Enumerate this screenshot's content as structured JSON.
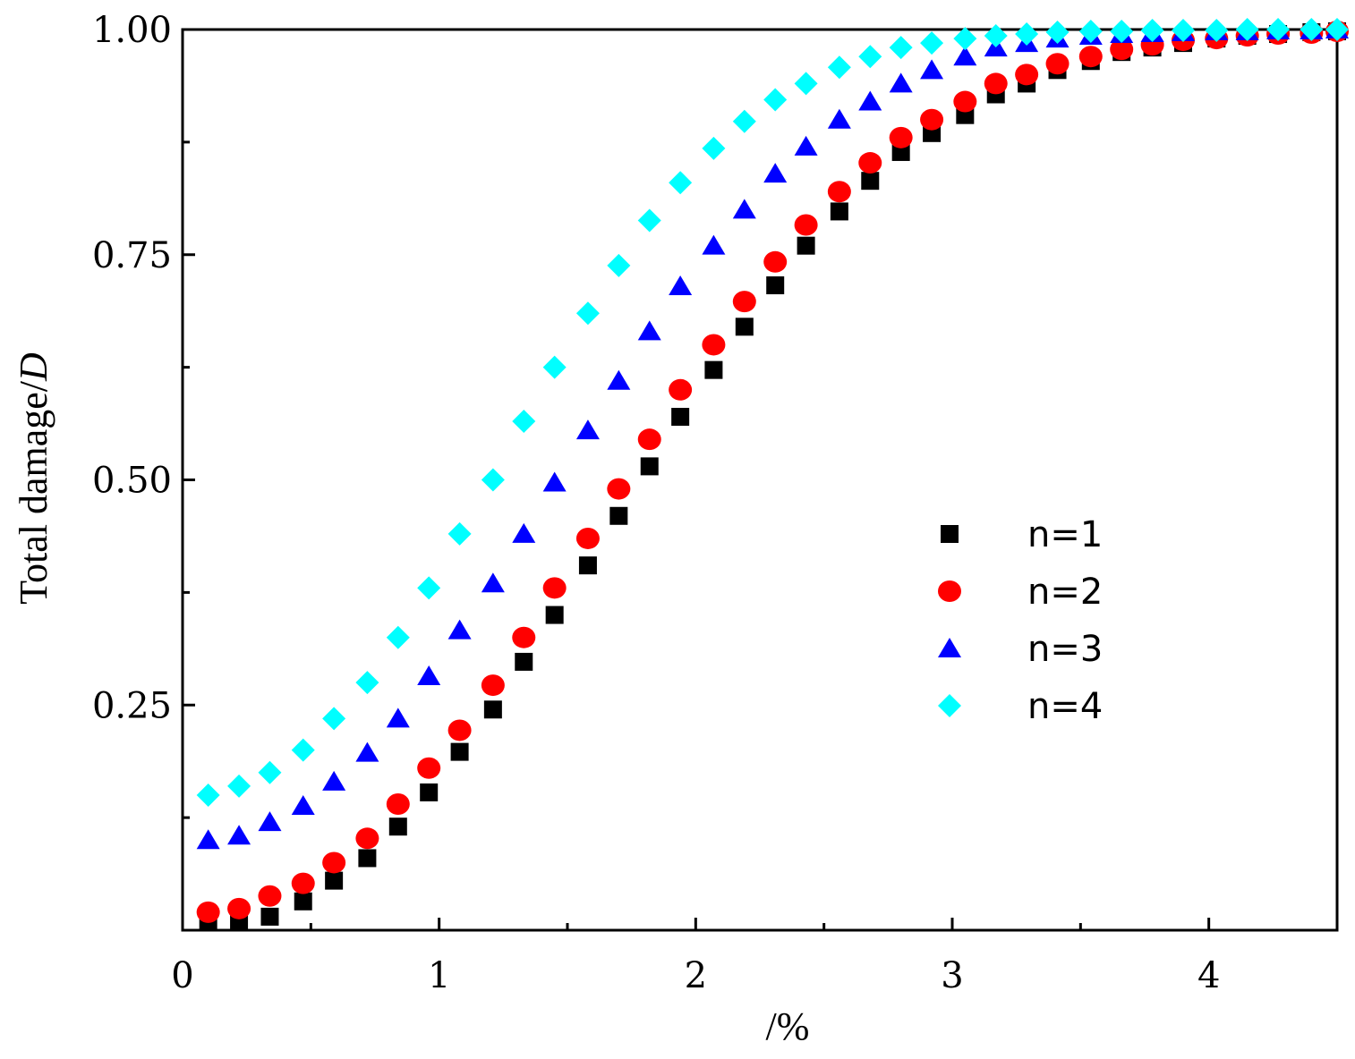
{
  "chart_data": {
    "type": "scatter",
    "title": "",
    "xlabel": "/%",
    "ylabel_text": "Total damage/",
    "ylabel_var": "D",
    "xlim": [
      0,
      4.5
    ],
    "ylim": [
      0,
      1.0
    ],
    "xticks": [
      0,
      1,
      2,
      3,
      4
    ],
    "xtick_labels": [
      "0",
      "1",
      "2",
      "3",
      "4"
    ],
    "yticks": [
      0.25,
      0.5,
      0.75,
      1.0
    ],
    "ytick_labels": [
      "0.25",
      "0.50",
      "0.75",
      "1.00"
    ],
    "yminor_ticks": [
      0.125,
      0.375,
      0.625,
      0.875
    ],
    "xminor_ticks": [
      0.5,
      1.5,
      2.5,
      3.5
    ],
    "legend_position": "center-right",
    "x": [
      0.1,
      0.22,
      0.34,
      0.47,
      0.59,
      0.72,
      0.84,
      0.96,
      1.08,
      1.21,
      1.33,
      1.45,
      1.58,
      1.7,
      1.82,
      1.94,
      2.07,
      2.19,
      2.31,
      2.43,
      2.56,
      2.68,
      2.8,
      2.92,
      3.05,
      3.17,
      3.29,
      3.41,
      3.54,
      3.66,
      3.78,
      3.9,
      4.03,
      4.15,
      4.27,
      4.4,
      4.5
    ],
    "series": [
      {
        "name": "n=1",
        "marker": "square",
        "color": "#000000",
        "values": [
          0.01,
          0.01,
          0.015,
          0.032,
          0.055,
          0.08,
          0.115,
          0.153,
          0.198,
          0.245,
          0.298,
          0.35,
          0.405,
          0.46,
          0.515,
          0.57,
          0.622,
          0.67,
          0.716,
          0.76,
          0.798,
          0.832,
          0.864,
          0.885,
          0.905,
          0.928,
          0.94,
          0.955,
          0.965,
          0.975,
          0.98,
          0.985,
          0.99,
          0.993,
          0.995,
          0.997,
          0.998
        ]
      },
      {
        "name": "n=2",
        "marker": "circle",
        "color": "#ff0000",
        "values": [
          0.02,
          0.024,
          0.038,
          0.052,
          0.075,
          0.102,
          0.14,
          0.18,
          0.222,
          0.272,
          0.325,
          0.38,
          0.435,
          0.49,
          0.545,
          0.6,
          0.65,
          0.698,
          0.742,
          0.783,
          0.82,
          0.852,
          0.88,
          0.9,
          0.92,
          0.94,
          0.95,
          0.962,
          0.97,
          0.978,
          0.983,
          0.988,
          0.99,
          0.993,
          0.995,
          0.996,
          0.998
        ]
      },
      {
        "name": "n=3",
        "marker": "triangle",
        "color": "#0000ff",
        "values": [
          0.1,
          0.105,
          0.12,
          0.138,
          0.165,
          0.197,
          0.235,
          0.282,
          0.333,
          0.385,
          0.44,
          0.497,
          0.555,
          0.61,
          0.665,
          0.715,
          0.76,
          0.8,
          0.84,
          0.87,
          0.9,
          0.92,
          0.94,
          0.955,
          0.97,
          0.98,
          0.985,
          0.99,
          0.993,
          0.995,
          0.996,
          0.997,
          0.998,
          0.998,
          0.999,
          0.999,
          1.0
        ]
      },
      {
        "name": "n=4",
        "marker": "diamond",
        "color": "#00ffff",
        "values": [
          0.15,
          0.16,
          0.175,
          0.2,
          0.235,
          0.275,
          0.325,
          0.38,
          0.44,
          0.5,
          0.565,
          0.625,
          0.685,
          0.738,
          0.788,
          0.83,
          0.868,
          0.898,
          0.922,
          0.94,
          0.958,
          0.97,
          0.98,
          0.985,
          0.99,
          0.993,
          0.995,
          0.997,
          0.998,
          0.998,
          0.999,
          0.999,
          0.999,
          1.0,
          1.0,
          1.0,
          1.0
        ]
      }
    ]
  }
}
